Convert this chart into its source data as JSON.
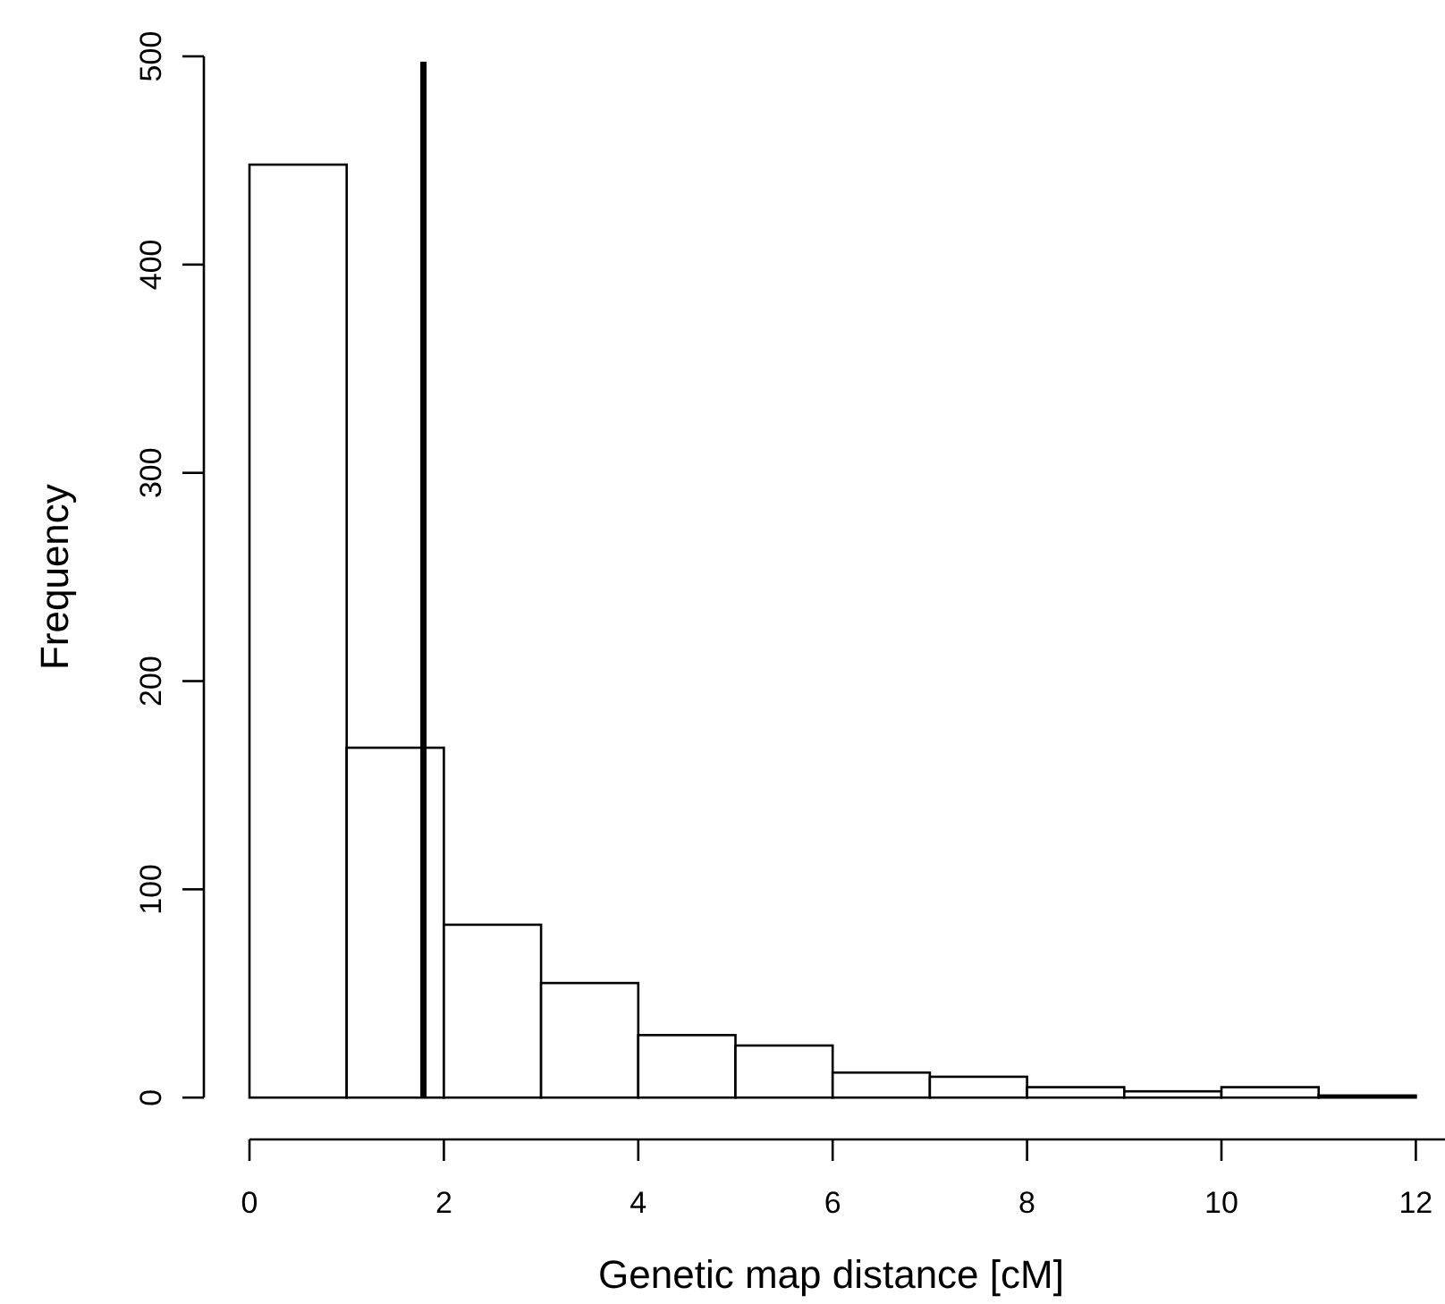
{
  "chart_data": {
    "type": "histogram",
    "xlabel": "Genetic map distance [cM]",
    "ylabel": "Frequency",
    "bins": [
      0,
      1,
      2,
      3,
      4,
      5,
      6,
      7,
      8,
      9,
      10,
      11,
      12
    ],
    "values": [
      448,
      168,
      83,
      55,
      30,
      25,
      12,
      10,
      5,
      3,
      5,
      1
    ],
    "color": "#ffffff",
    "xlim": [
      0,
      12.3
    ],
    "ylim": [
      0,
      500
    ],
    "xticks": [
      0,
      2,
      4,
      6,
      8,
      10,
      12
    ],
    "yticks": [
      0,
      100,
      200,
      300,
      400,
      500
    ],
    "ref_lines": [
      {
        "axis": "x",
        "value": 1.79,
        "color": "#000000"
      }
    ],
    "grid": false
  }
}
